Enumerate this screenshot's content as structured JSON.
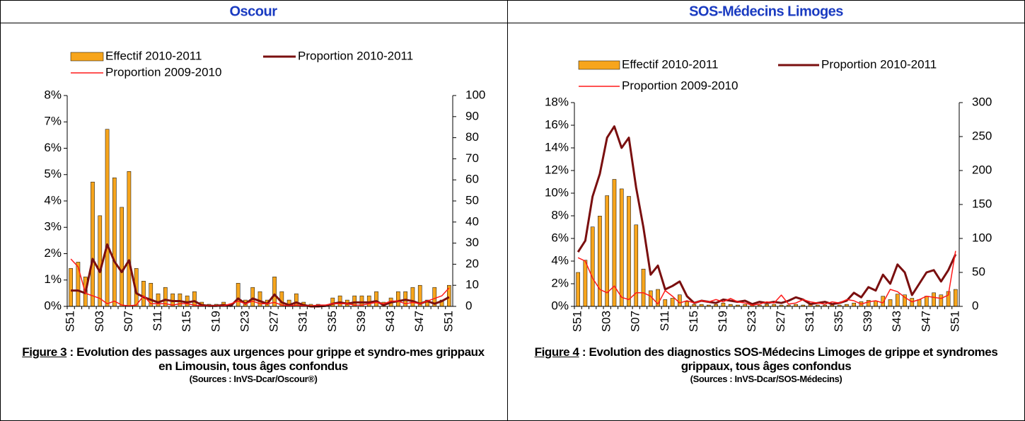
{
  "panels": [
    {
      "title": "Oscour",
      "figure_label": "Figure 3",
      "caption": " : Evolution des passages aux urgences pour grippe et syndro-mes grippaux en Limousin, tous âges confondus",
      "sources": "(Sources : InVS-Dcar/Oscour®)"
    },
    {
      "title": "SOS-Médecins Limoges",
      "figure_label": "Figure 4",
      "caption": " : Evolution des diagnostics SOS-Médecins Limoges de grippe et syndromes grippaux, tous âges confondus",
      "sources": "(Sources : InVS-Dcar/SOS-Médecins)"
    }
  ],
  "chart_data": [
    {
      "type": "combo",
      "categories": [
        "S51",
        null,
        null,
        null,
        "S03",
        null,
        null,
        null,
        "S07",
        null,
        null,
        null,
        "S11",
        null,
        null,
        null,
        "S15",
        null,
        null,
        null,
        "S19",
        null,
        null,
        null,
        "S23",
        null,
        null,
        null,
        "S27",
        null,
        null,
        null,
        "S31",
        null,
        null,
        null,
        "S35",
        null,
        null,
        null,
        "S39",
        null,
        null,
        null,
        "S43",
        null,
        null,
        null,
        "S47",
        null,
        null,
        null,
        "S51"
      ],
      "ylim": [
        0,
        8
      ],
      "yticks": [
        {
          "value": 0,
          "label": "0%"
        },
        {
          "value": 1,
          "label": "1%"
        },
        {
          "value": 2,
          "label": "2%"
        },
        {
          "value": 3,
          "label": "3%"
        },
        {
          "value": 4,
          "label": "4%"
        },
        {
          "value": 5,
          "label": "5%"
        },
        {
          "value": 6,
          "label": "6%"
        },
        {
          "value": 7,
          "label": "7%"
        },
        {
          "value": 8,
          "label": "8%"
        }
      ],
      "y2lim": [
        0,
        100
      ],
      "y2ticks": [
        0,
        10,
        20,
        30,
        40,
        50,
        60,
        70,
        80,
        90,
        100
      ],
      "series": [
        {
          "name": "Effectif 2010-2011",
          "type": "bar",
          "axis": "y2",
          "color": "#f7a51c",
          "values": [
            18,
            21,
            14,
            59,
            43,
            84,
            61,
            47,
            64,
            18,
            12,
            11,
            6,
            9,
            6,
            6,
            5,
            7,
            2,
            1,
            1,
            2,
            1,
            11,
            3,
            9,
            7,
            3,
            14,
            7,
            3,
            6,
            2,
            1,
            1,
            0,
            4,
            5,
            3,
            5,
            5,
            5,
            7,
            2,
            4,
            7,
            7,
            9,
            10,
            3,
            9,
            3,
            10
          ]
        },
        {
          "name": "Proportion 2010-2011",
          "type": "line",
          "axis": "y",
          "color": "#7a0f0f",
          "values": [
            0.6,
            0.6,
            0.5,
            1.8,
            1.3,
            2.35,
            1.7,
            1.3,
            1.75,
            0.5,
            0.35,
            0.25,
            0.15,
            0.25,
            0.2,
            0.2,
            0.15,
            0.2,
            0.05,
            0.02,
            0.02,
            0.05,
            0.02,
            0.3,
            0.1,
            0.3,
            0.2,
            0.1,
            0.45,
            0.15,
            0.05,
            0.15,
            0.05,
            0,
            0,
            0.02,
            0.1,
            0.15,
            0.1,
            0.15,
            0.15,
            0.15,
            0.2,
            0.05,
            0.15,
            0.2,
            0.25,
            0.2,
            0.1,
            0.2,
            0.1,
            0.2,
            0.35
          ]
        },
        {
          "name": "Proportion 2009-2010",
          "type": "line",
          "axis": "y",
          "color": "#ff1a1a",
          "values": [
            1.8,
            1.5,
            0.5,
            0.4,
            0.3,
            0.1,
            0.2,
            0.05,
            0.02,
            0.05,
            0.4,
            0.1,
            0.1,
            0.1,
            0.05,
            0.1,
            0.1,
            0.05,
            0.02,
            0.02,
            0.02,
            0.02,
            0.1,
            0.2,
            0.1,
            0.2,
            0.1,
            0.1,
            0.15,
            0.05,
            0.02,
            0.05,
            0.02,
            0.02,
            0.05,
            0.05,
            0.1,
            0.1,
            0.1,
            0.05,
            0.05,
            0.1,
            0.15,
            0.1,
            0.2,
            0.2,
            0.1,
            0.15,
            0.1,
            0.2,
            0.3,
            0.4,
            0.7
          ]
        }
      ]
    },
    {
      "type": "combo",
      "categories": [
        "S51",
        null,
        null,
        null,
        "S03",
        null,
        null,
        null,
        "S07",
        null,
        null,
        null,
        "S11",
        null,
        null,
        null,
        "S15",
        null,
        null,
        null,
        "S19",
        null,
        null,
        null,
        "S23",
        null,
        null,
        null,
        "S27",
        null,
        null,
        null,
        "S31",
        null,
        null,
        null,
        "S35",
        null,
        null,
        null,
        "S39",
        null,
        null,
        null,
        "S43",
        null,
        null,
        null,
        "S47",
        null,
        null,
        null,
        "S51"
      ],
      "ylim": [
        0,
        18
      ],
      "yticks": [
        {
          "value": 0,
          "label": "0%"
        },
        {
          "value": 2,
          "label": "2%"
        },
        {
          "value": 4,
          "label": "4%"
        },
        {
          "value": 6,
          "label": "6%"
        },
        {
          "value": 8,
          "label": "8%"
        },
        {
          "value": 10,
          "label": "10%"
        },
        {
          "value": 12,
          "label": "12%"
        },
        {
          "value": 14,
          "label": "14%"
        },
        {
          "value": 16,
          "label": "16%"
        },
        {
          "value": 18,
          "label": "18%"
        }
      ],
      "y2lim": [
        0,
        300
      ],
      "y2ticks": [
        0,
        50,
        100,
        150,
        200,
        250,
        300
      ],
      "series": [
        {
          "name": "Effectif 2010-2011",
          "type": "bar",
          "axis": "y2",
          "color": "#f7a51c",
          "values": [
            50,
            68,
            117,
            133,
            163,
            187,
            173,
            162,
            120,
            55,
            23,
            25,
            10,
            12,
            17,
            7,
            3,
            3,
            2,
            3,
            5,
            3,
            2,
            3,
            2,
            2,
            3,
            3,
            2,
            2,
            3,
            2,
            3,
            2,
            2,
            2,
            2,
            3,
            5,
            7,
            9,
            8,
            15,
            10,
            18,
            17,
            12,
            10,
            15,
            20,
            17,
            22,
            25
          ]
        },
        {
          "name": "Proportion 2010-2011",
          "type": "line",
          "axis": "y",
          "color": "#7a0f0f",
          "values": [
            4.8,
            5.8,
            9.7,
            11.7,
            14.9,
            15.9,
            14,
            14.9,
            10.5,
            7,
            2.8,
            3.6,
            1.5,
            1.8,
            2.2,
            0.9,
            0.3,
            0.5,
            0.4,
            0.3,
            0.6,
            0.5,
            0.4,
            0.5,
            0.2,
            0.4,
            0.3,
            0.4,
            0.3,
            0.5,
            0.8,
            0.6,
            0.2,
            0.3,
            0.4,
            0.2,
            0.3,
            0.5,
            1.2,
            0.8,
            1.7,
            1.4,
            2.8,
            2,
            3.7,
            3,
            1,
            2,
            3,
            3.2,
            2.2,
            3.2,
            4.6
          ]
        },
        {
          "name": "Proportion 2009-2010",
          "type": "line",
          "axis": "y",
          "color": "#ff1a1a",
          "values": [
            4.3,
            4,
            2.5,
            1.5,
            1.2,
            1.8,
            0.8,
            0.6,
            1.2,
            1.2,
            0.9,
            0.2,
            1.4,
            0.9,
            0.3,
            0.5,
            0.3,
            0.5,
            0.4,
            0.6,
            0.4,
            0.7,
            0.4,
            0.3,
            0.1,
            0.2,
            0.4,
            0.3,
            1,
            0.2,
            0.3,
            0.6,
            0.4,
            0.3,
            0.2,
            0.4,
            0.3,
            0.6,
            0.5,
            0.2,
            0.4,
            0.5,
            0.3,
            1.5,
            1.3,
            0.8,
            0.4,
            0.6,
            0.9,
            0.8,
            0.7,
            1,
            4.9
          ]
        }
      ]
    }
  ]
}
